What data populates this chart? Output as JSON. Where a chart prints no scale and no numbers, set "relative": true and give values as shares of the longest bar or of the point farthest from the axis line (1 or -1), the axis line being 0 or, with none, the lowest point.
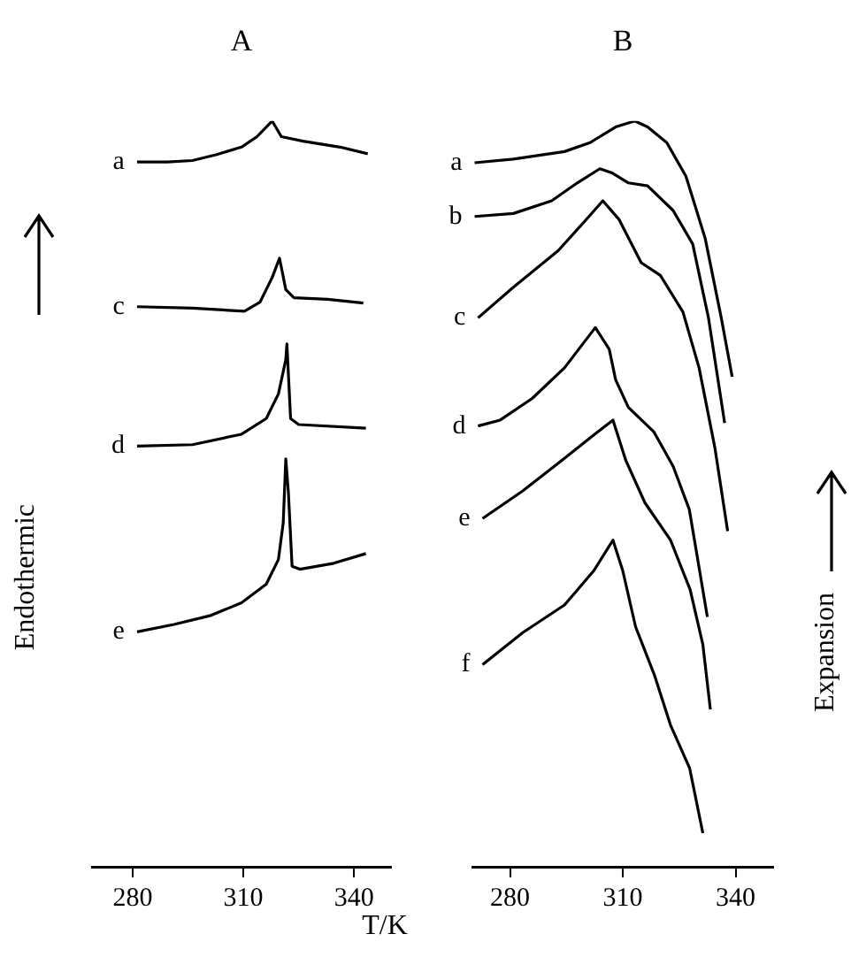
{
  "chart_data": [
    {
      "type": "line",
      "title": "A",
      "ylabel": "Endothermic",
      "xlabel": "T/K",
      "relative": true,
      "xlim": [
        269,
        350
      ],
      "xticks": [
        280,
        310,
        340
      ],
      "tick_labels": "x",
      "series": [
        {
          "name": "a",
          "color": "#000000",
          "x": [
            281.2,
            289.5,
            296.2,
            302.8,
            309.5,
            313.7,
            317.8,
            320.3,
            326.2,
            336.2,
            343.7
          ],
          "values": [
            0.945,
            0.945,
            0.947,
            0.955,
            0.965,
            0.979,
            1.0,
            0.979,
            0.973,
            0.965,
            0.956
          ]
        },
        {
          "name": "c",
          "color": "#000000",
          "x": [
            281.2,
            296.2,
            310.3,
            314.5,
            317.8,
            319.8,
            321.5,
            323.7,
            332.8,
            342.5
          ],
          "values": [
            0.751,
            0.749,
            0.745,
            0.757,
            0.79,
            0.816,
            0.774,
            0.763,
            0.761,
            0.756
          ]
        },
        {
          "name": "d",
          "color": "#000000",
          "x": [
            281.2,
            296.2,
            309.5,
            316.2,
            319.5,
            321.5,
            321.8,
            322.8,
            325.0,
            343.2
          ],
          "values": [
            0.564,
            0.566,
            0.58,
            0.601,
            0.634,
            0.68,
            0.701,
            0.601,
            0.593,
            0.588
          ]
        },
        {
          "name": "e",
          "color": "#000000",
          "x": [
            281.2,
            291.2,
            301.2,
            309.5,
            316.2,
            319.5,
            320.8,
            321.5,
            322.2,
            323.2,
            325.3,
            334.5,
            343.2
          ],
          "values": [
            0.315,
            0.325,
            0.337,
            0.354,
            0.379,
            0.412,
            0.461,
            0.547,
            0.502,
            0.403,
            0.399,
            0.407,
            0.42
          ]
        }
      ]
    },
    {
      "type": "line",
      "title": "B",
      "ylabel": "Expansion",
      "relative": true,
      "xlim": [
        270,
        350
      ],
      "xticks": [
        280,
        310,
        340
      ],
      "tick_labels": "x",
      "series": [
        {
          "name": "a",
          "color": "#000000",
          "x": [
            270.6,
            280.9,
            294.5,
            301.3,
            308.1,
            313.2,
            316.6,
            321.7,
            326.8,
            331.9,
            336.2,
            339.1
          ],
          "values": [
            0.944,
            0.949,
            0.959,
            0.971,
            0.992,
            1.0,
            0.992,
            0.971,
            0.926,
            0.843,
            0.736,
            0.657
          ]
        },
        {
          "name": "b",
          "color": "#000000",
          "x": [
            270.6,
            280.9,
            291.1,
            297.9,
            303.9,
            307.3,
            311.5,
            316.6,
            323.4,
            328.6,
            332.8,
            337.1
          ],
          "values": [
            0.872,
            0.876,
            0.893,
            0.917,
            0.936,
            0.93,
            0.917,
            0.913,
            0.88,
            0.835,
            0.736,
            0.595
          ]
        },
        {
          "name": "c",
          "color": "#000000",
          "x": [
            271.5,
            280.9,
            292.8,
            299.6,
            304.7,
            309.0,
            314.9,
            320.0,
            326.0,
            330.3,
            334.5,
            337.9
          ],
          "values": [
            0.736,
            0.777,
            0.826,
            0.864,
            0.893,
            0.868,
            0.81,
            0.793,
            0.744,
            0.669,
            0.562,
            0.45
          ]
        },
        {
          "name": "d",
          "color": "#000000",
          "x": [
            271.5,
            277.4,
            285.9,
            294.5,
            302.7,
            306.4,
            308.1,
            311.5,
            318.3,
            323.4,
            327.7,
            332.5
          ],
          "values": [
            0.591,
            0.599,
            0.628,
            0.669,
            0.723,
            0.694,
            0.653,
            0.616,
            0.583,
            0.537,
            0.479,
            0.335
          ]
        },
        {
          "name": "e",
          "color": "#000000",
          "x": [
            272.7,
            283.4,
            293.8,
            302.3,
            307.4,
            310.8,
            315.9,
            322.7,
            327.9,
            331.3,
            333.3
          ],
          "values": [
            0.467,
            0.504,
            0.545,
            0.579,
            0.599,
            0.545,
            0.488,
            0.438,
            0.372,
            0.298,
            0.211
          ]
        },
        {
          "name": "f",
          "color": "#000000",
          "x": [
            272.7,
            283.4,
            294.5,
            302.3,
            307.4,
            310.0,
            313.4,
            318.5,
            322.7,
            327.8,
            331.3
          ],
          "values": [
            0.271,
            0.314,
            0.351,
            0.397,
            0.438,
            0.397,
            0.322,
            0.256,
            0.19,
            0.132,
            0.045
          ]
        }
      ]
    }
  ]
}
